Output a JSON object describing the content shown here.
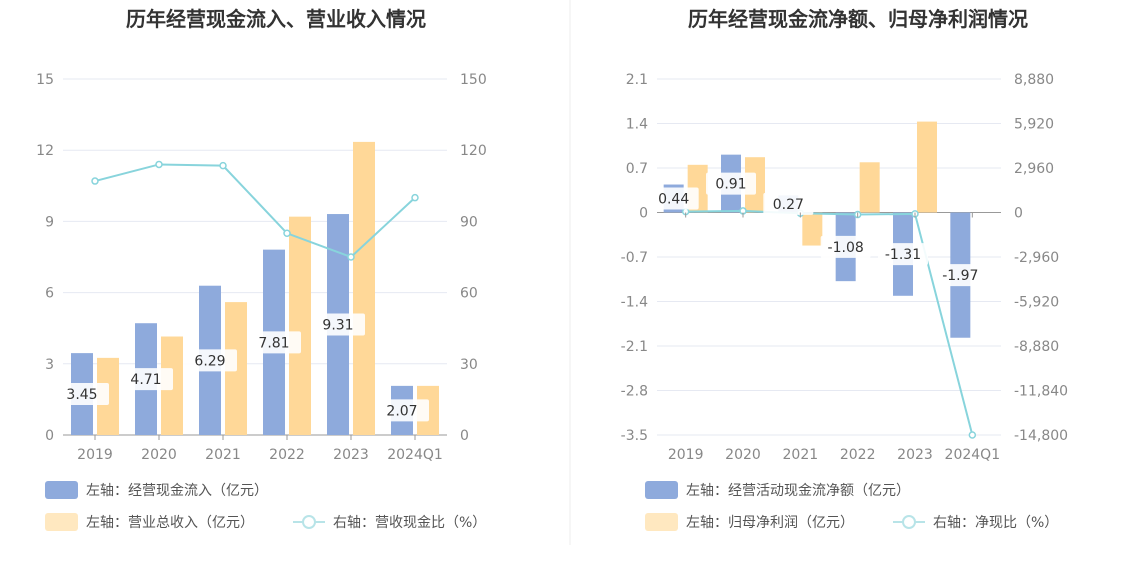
{
  "chart_data": [
    {
      "type": "bar",
      "title": "历年经营现金流入、营业收入情况",
      "categories": [
        "2019",
        "2020",
        "2021",
        "2022",
        "2023",
        "2024Q1"
      ],
      "left_axis": {
        "ticks": [
          "15",
          "12",
          "9",
          "6",
          "3",
          "0"
        ],
        "ylim": [
          0,
          15
        ]
      },
      "right_axis": {
        "ticks": [
          "150",
          "120",
          "90",
          "60",
          "30",
          "0"
        ],
        "ylim": [
          0,
          150
        ]
      },
      "series": [
        {
          "name": "左轴：经营现金流入（亿元）",
          "type": "bar",
          "axis": "left",
          "color": "#8eaadc",
          "values": [
            3.45,
            4.71,
            6.29,
            7.81,
            9.31,
            2.07
          ],
          "labels": [
            "3.45",
            "4.71",
            "6.29",
            "7.81",
            "9.31",
            "2.07"
          ]
        },
        {
          "name": "左轴：营业总收入（亿元）",
          "type": "bar",
          "axis": "left",
          "color": "#ffd898",
          "values": [
            3.25,
            4.15,
            5.6,
            9.2,
            12.35,
            2.07
          ]
        },
        {
          "name": "右轴：营收现金比（%）",
          "type": "line",
          "axis": "right",
          "color": "#88d4dc",
          "values": [
            107,
            114,
            113.5,
            85,
            75,
            100
          ]
        }
      ],
      "grid": true,
      "legend_position": "bottom-left"
    },
    {
      "type": "bar",
      "title": "历年经营现金流净额、归母净利润情况",
      "categories": [
        "2019",
        "2020",
        "2021",
        "2022",
        "2023",
        "2024Q1"
      ],
      "left_axis": {
        "ticks": [
          "2.1",
          "1.4",
          "0.7",
          "0",
          "-0.7",
          "-1.4",
          "-2.1",
          "-2.8",
          "-3.5"
        ],
        "ylim": [
          -3.5,
          2.1
        ]
      },
      "right_axis": {
        "ticks": [
          "8,880",
          "5,920",
          "2,960",
          "0",
          "-2,960",
          "-5,920",
          "-8,880",
          "-11,840",
          "-14,800"
        ],
        "ylim": [
          -14800,
          8880
        ]
      },
      "series": [
        {
          "name": "左轴：经营活动现金流净额（亿元）",
          "type": "bar",
          "axis": "left",
          "color": "#8eaadc",
          "values": [
            0.44,
            0.91,
            0.27,
            -1.08,
            -1.31,
            -1.97
          ],
          "labels": [
            "0.44",
            "0.91",
            "0.27",
            "-1.08",
            "-1.31",
            "-1.97"
          ]
        },
        {
          "name": "左轴：归母净利润（亿元）",
          "type": "bar",
          "axis": "left",
          "color": "#ffd898",
          "values": [
            0.75,
            0.87,
            -0.52,
            0.79,
            1.43,
            0.0
          ]
        },
        {
          "name": "右轴：净现比（%）",
          "type": "line",
          "axis": "right",
          "color": "#88d4dc",
          "values": [
            59,
            105,
            -51,
            -137,
            -92,
            -14800
          ]
        }
      ],
      "grid": true,
      "legend_position": "bottom-left"
    }
  ]
}
